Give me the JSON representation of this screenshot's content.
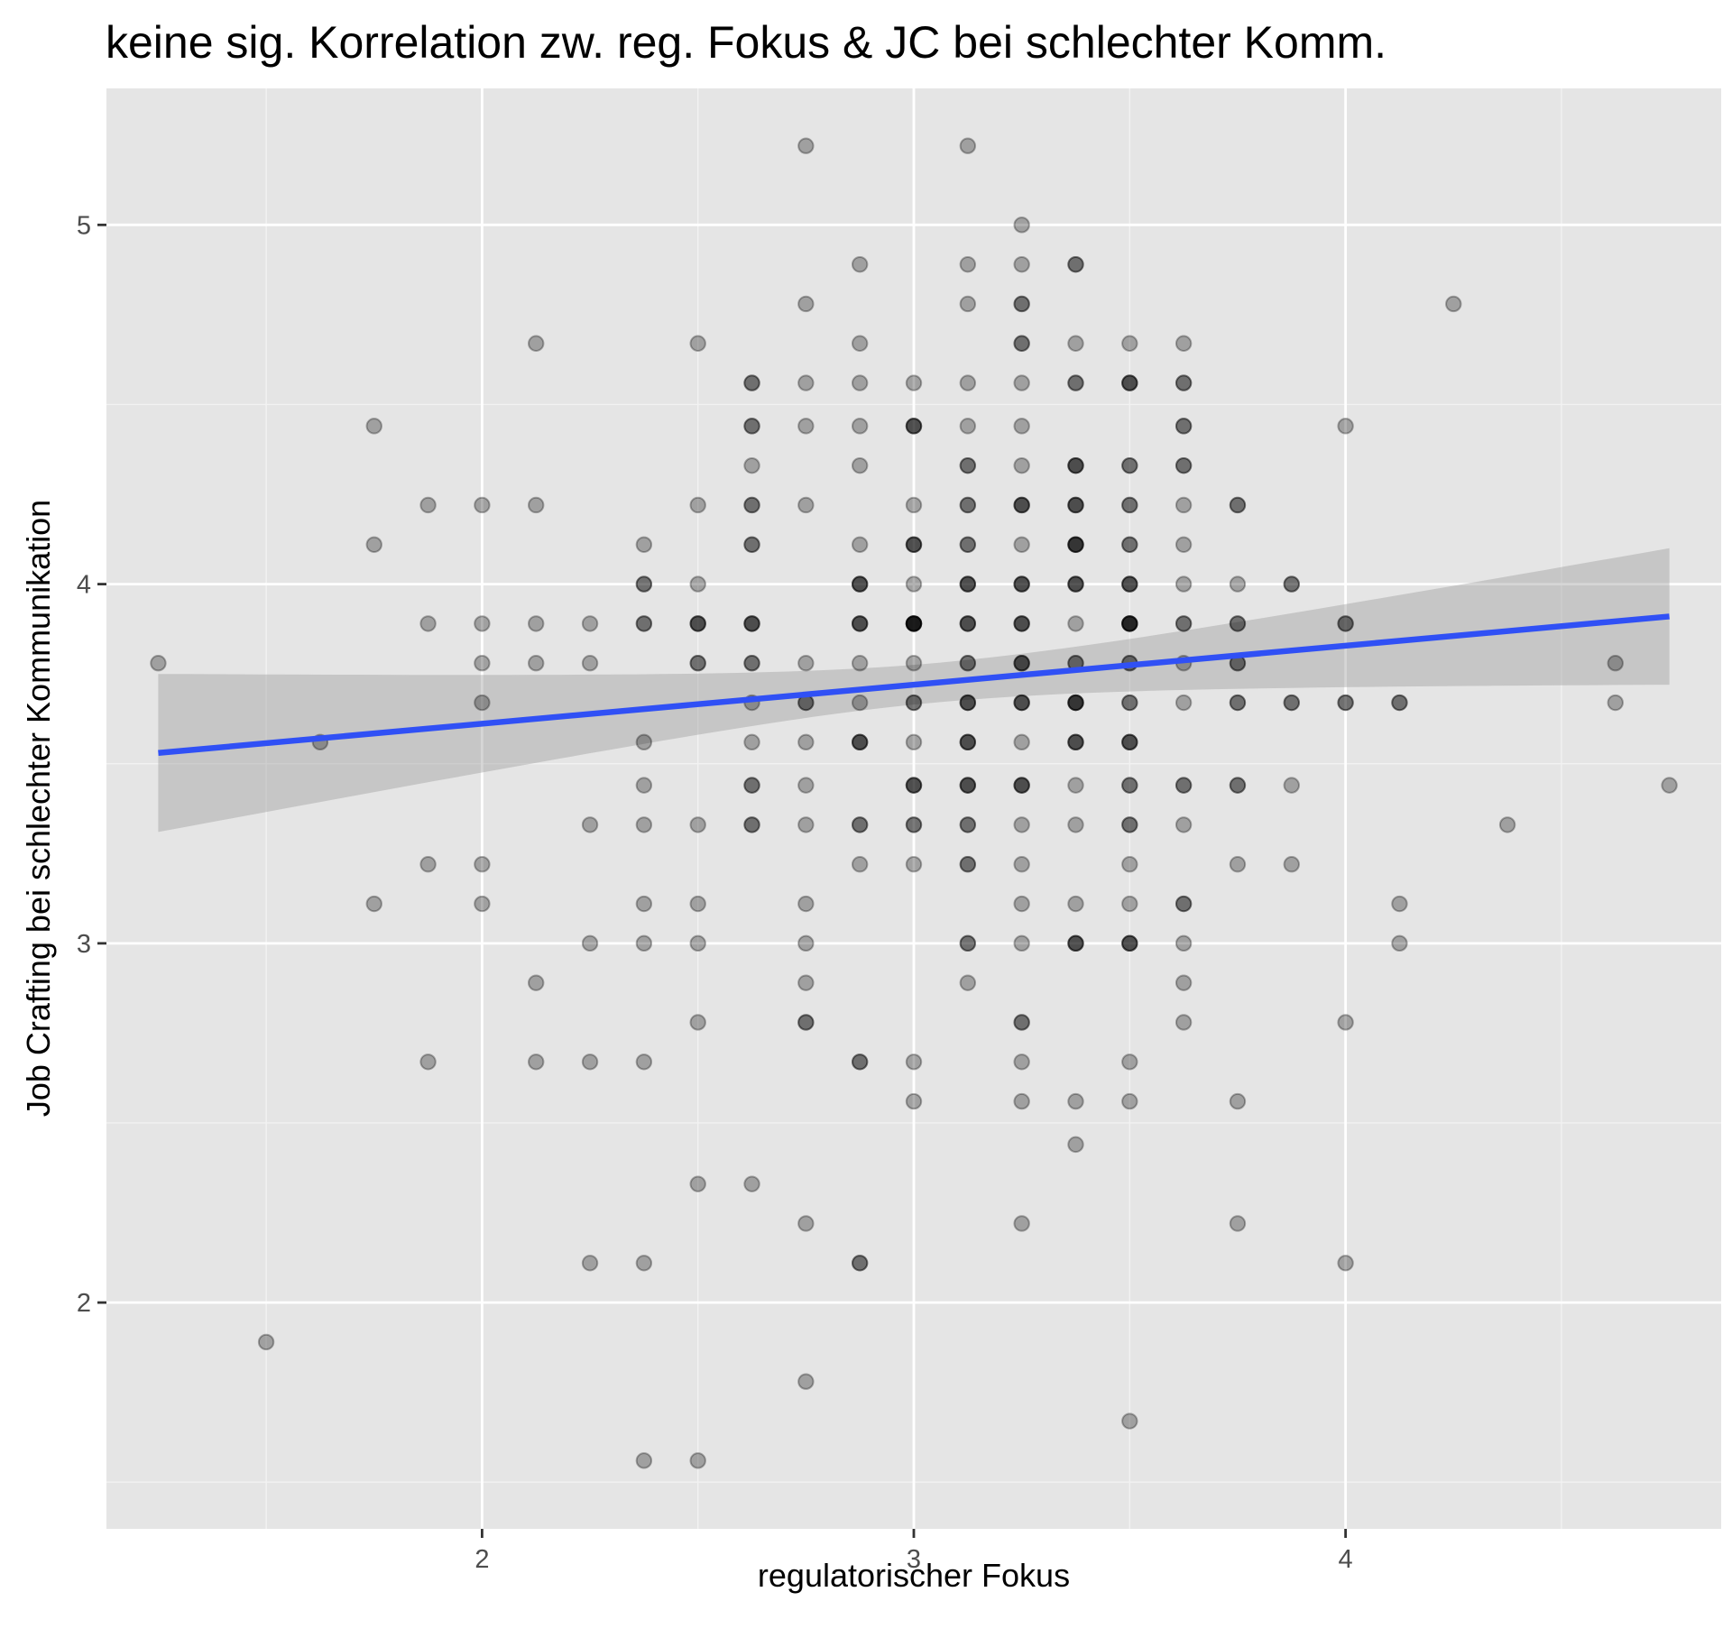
{
  "chart_data": {
    "type": "scatter",
    "title": "keine sig. Korrelation zw. reg. Fokus & JC bei schlechter Komm.",
    "xlabel": "regulatorischer Fokus",
    "ylabel": "Job Crafting bei schlechter Kommunikation",
    "xlim": [
      1.13,
      4.87
    ],
    "ylim": [
      1.37,
      5.38
    ],
    "x_ticks": [
      2,
      3,
      4
    ],
    "x_tick_labels": [
      "2",
      "3",
      "4"
    ],
    "y_ticks": [
      2,
      3,
      4,
      5
    ],
    "y_tick_labels": [
      "2",
      "3",
      "4",
      "5"
    ],
    "x_minor": [
      1.5,
      2.5,
      3.5,
      4.5
    ],
    "y_minor": [
      1.5,
      2.5,
      3.5,
      4.5
    ],
    "grid": true,
    "point_alpha": 0.3,
    "colors": {
      "panel": "#e5e5e5",
      "grid_major": "#ffffff",
      "grid_minor": "#f2f2f2",
      "points": "#000000",
      "fit_line": "#3050f5",
      "ribbon": "#999999",
      "tick": "#333333"
    },
    "fit": {
      "method": "lm",
      "x": [
        1.25,
        4.75
      ],
      "y": [
        3.53,
        3.91
      ],
      "ci_lower": [
        3.31,
        3.72
      ],
      "ci_upper": [
        3.75,
        4.1
      ],
      "ci_at_x": 3.05,
      "ci_min_lower": 3.68,
      "ci_min_upper": 3.79
    },
    "points": [
      [
        1.25,
        3.78
      ],
      [
        1.5,
        1.89
      ],
      [
        1.625,
        3.56
      ],
      [
        1.75,
        4.44
      ],
      [
        1.75,
        4.11
      ],
      [
        1.75,
        3.11
      ],
      [
        1.875,
        4.22
      ],
      [
        1.875,
        3.89
      ],
      [
        1.875,
        3.22
      ],
      [
        1.875,
        2.67
      ],
      [
        2,
        4.22
      ],
      [
        2,
        3.89
      ],
      [
        2,
        3.78
      ],
      [
        2,
        3.67
      ],
      [
        2,
        3.22
      ],
      [
        2,
        3.11
      ],
      [
        2.125,
        4.67
      ],
      [
        2.125,
        4.22
      ],
      [
        2.125,
        3.89
      ],
      [
        2.125,
        3.78
      ],
      [
        2.125,
        2.89
      ],
      [
        2.125,
        2.67
      ],
      [
        2.25,
        3.89
      ],
      [
        2.25,
        3.78
      ],
      [
        2.25,
        3.33
      ],
      [
        2.25,
        3
      ],
      [
        2.25,
        2.67
      ],
      [
        2.25,
        2.11
      ],
      [
        2.375,
        4.11
      ],
      [
        2.375,
        4
      ],
      [
        2.375,
        4
      ],
      [
        2.375,
        3.89
      ],
      [
        2.375,
        3.89
      ],
      [
        2.375,
        3.56
      ],
      [
        2.375,
        3.44
      ],
      [
        2.375,
        3.33
      ],
      [
        2.375,
        3.11
      ],
      [
        2.375,
        3
      ],
      [
        2.375,
        2.67
      ],
      [
        2.375,
        2.11
      ],
      [
        2.375,
        1.56
      ],
      [
        2.5,
        4.67
      ],
      [
        2.5,
        4.22
      ],
      [
        2.5,
        4
      ],
      [
        2.5,
        3.89
      ],
      [
        2.5,
        3.89
      ],
      [
        2.5,
        3.89
      ],
      [
        2.5,
        3.78
      ],
      [
        2.5,
        3.78
      ],
      [
        2.5,
        3.33
      ],
      [
        2.5,
        3.11
      ],
      [
        2.5,
        3
      ],
      [
        2.5,
        2.78
      ],
      [
        2.5,
        2.33
      ],
      [
        2.5,
        1.56
      ],
      [
        2.625,
        4.56
      ],
      [
        2.625,
        4.56
      ],
      [
        2.625,
        4.44
      ],
      [
        2.625,
        4.44
      ],
      [
        2.625,
        4.33
      ],
      [
        2.625,
        4.22
      ],
      [
        2.625,
        4.22
      ],
      [
        2.625,
        4.11
      ],
      [
        2.625,
        4.11
      ],
      [
        2.625,
        3.89
      ],
      [
        2.625,
        3.89
      ],
      [
        2.625,
        3.89
      ],
      [
        2.625,
        3.78
      ],
      [
        2.625,
        3.78
      ],
      [
        2.625,
        3.67
      ],
      [
        2.625,
        3.56
      ],
      [
        2.625,
        3.44
      ],
      [
        2.625,
        3.44
      ],
      [
        2.625,
        3.33
      ],
      [
        2.625,
        3.33
      ],
      [
        2.625,
        2.33
      ],
      [
        2.75,
        5.22
      ],
      [
        2.75,
        4.78
      ],
      [
        2.75,
        4.56
      ],
      [
        2.75,
        4.44
      ],
      [
        2.75,
        4.22
      ],
      [
        2.75,
        3.78
      ],
      [
        2.75,
        3.67
      ],
      [
        2.75,
        3.67
      ],
      [
        2.75,
        3.56
      ],
      [
        2.75,
        3.44
      ],
      [
        2.75,
        3.33
      ],
      [
        2.75,
        3.11
      ],
      [
        2.75,
        3
      ],
      [
        2.75,
        2.89
      ],
      [
        2.75,
        2.78
      ],
      [
        2.75,
        2.78
      ],
      [
        2.75,
        2.22
      ],
      [
        2.75,
        1.78
      ],
      [
        2.875,
        4.89
      ],
      [
        2.875,
        4.67
      ],
      [
        2.875,
        4.56
      ],
      [
        2.875,
        4.44
      ],
      [
        2.875,
        4.33
      ],
      [
        2.875,
        4.11
      ],
      [
        2.875,
        4
      ],
      [
        2.875,
        4
      ],
      [
        2.875,
        4
      ],
      [
        2.875,
        3.89
      ],
      [
        2.875,
        3.89
      ],
      [
        2.875,
        3.89
      ],
      [
        2.875,
        3.78
      ],
      [
        2.875,
        3.67
      ],
      [
        2.875,
        3.56
      ],
      [
        2.875,
        3.56
      ],
      [
        2.875,
        3.56
      ],
      [
        2.875,
        3.33
      ],
      [
        2.875,
        3.33
      ],
      [
        2.875,
        3.22
      ],
      [
        2.875,
        2.67
      ],
      [
        2.875,
        2.67
      ],
      [
        2.875,
        2.11
      ],
      [
        2.875,
        2.11
      ],
      [
        3,
        4.56
      ],
      [
        3,
        4.44
      ],
      [
        3,
        4.44
      ],
      [
        3,
        4.44
      ],
      [
        3,
        4.22
      ],
      [
        3,
        4.11
      ],
      [
        3,
        4.11
      ],
      [
        3,
        4.11
      ],
      [
        3,
        4
      ],
      [
        3,
        3.89
      ],
      [
        3,
        3.89
      ],
      [
        3,
        3.89
      ],
      [
        3,
        3.89
      ],
      [
        3,
        3.89
      ],
      [
        3,
        3.89
      ],
      [
        3,
        3.78
      ],
      [
        3,
        3.67
      ],
      [
        3,
        3.67
      ],
      [
        3,
        3.56
      ],
      [
        3,
        3.44
      ],
      [
        3,
        3.44
      ],
      [
        3,
        3.44
      ],
      [
        3,
        3.33
      ],
      [
        3,
        3.33
      ],
      [
        3,
        3.22
      ],
      [
        3,
        2.67
      ],
      [
        3,
        2.56
      ],
      [
        3.125,
        5.22
      ],
      [
        3.125,
        4.89
      ],
      [
        3.125,
        4.78
      ],
      [
        3.125,
        4.56
      ],
      [
        3.125,
        4.44
      ],
      [
        3.125,
        4.33
      ],
      [
        3.125,
        4.33
      ],
      [
        3.125,
        4.22
      ],
      [
        3.125,
        4.22
      ],
      [
        3.125,
        4.11
      ],
      [
        3.125,
        4.11
      ],
      [
        3.125,
        4
      ],
      [
        3.125,
        4
      ],
      [
        3.125,
        4
      ],
      [
        3.125,
        3.89
      ],
      [
        3.125,
        3.89
      ],
      [
        3.125,
        3.89
      ],
      [
        3.125,
        3.78
      ],
      [
        3.125,
        3.78
      ],
      [
        3.125,
        3.67
      ],
      [
        3.125,
        3.67
      ],
      [
        3.125,
        3.67
      ],
      [
        3.125,
        3.56
      ],
      [
        3.125,
        3.56
      ],
      [
        3.125,
        3.56
      ],
      [
        3.125,
        3.44
      ],
      [
        3.125,
        3.44
      ],
      [
        3.125,
        3.44
      ],
      [
        3.125,
        3.33
      ],
      [
        3.125,
        3.33
      ],
      [
        3.125,
        3.22
      ],
      [
        3.125,
        3.22
      ],
      [
        3.125,
        3
      ],
      [
        3.125,
        3
      ],
      [
        3.125,
        2.89
      ],
      [
        3.25,
        5
      ],
      [
        3.25,
        4.89
      ],
      [
        3.25,
        4.78
      ],
      [
        3.25,
        4.78
      ],
      [
        3.25,
        4.67
      ],
      [
        3.25,
        4.67
      ],
      [
        3.25,
        4.56
      ],
      [
        3.25,
        4.44
      ],
      [
        3.25,
        4.33
      ],
      [
        3.25,
        4.22
      ],
      [
        3.25,
        4.22
      ],
      [
        3.25,
        4.22
      ],
      [
        3.25,
        4.11
      ],
      [
        3.25,
        4
      ],
      [
        3.25,
        4
      ],
      [
        3.25,
        4
      ],
      [
        3.25,
        3.89
      ],
      [
        3.25,
        3.89
      ],
      [
        3.25,
        3.89
      ],
      [
        3.25,
        3.78
      ],
      [
        3.25,
        3.78
      ],
      [
        3.25,
        3.78
      ],
      [
        3.25,
        3.67
      ],
      [
        3.25,
        3.67
      ],
      [
        3.25,
        3.67
      ],
      [
        3.25,
        3.56
      ],
      [
        3.25,
        3.44
      ],
      [
        3.25,
        3.44
      ],
      [
        3.25,
        3.44
      ],
      [
        3.25,
        3.33
      ],
      [
        3.25,
        3.22
      ],
      [
        3.25,
        3.11
      ],
      [
        3.25,
        3
      ],
      [
        3.25,
        2.78
      ],
      [
        3.25,
        2.78
      ],
      [
        3.25,
        2.67
      ],
      [
        3.25,
        2.56
      ],
      [
        3.25,
        2.22
      ],
      [
        3.375,
        4.89
      ],
      [
        3.375,
        4.89
      ],
      [
        3.375,
        4.67
      ],
      [
        3.375,
        4.56
      ],
      [
        3.375,
        4.56
      ],
      [
        3.375,
        4.33
      ],
      [
        3.375,
        4.33
      ],
      [
        3.375,
        4.33
      ],
      [
        3.375,
        4.22
      ],
      [
        3.375,
        4.22
      ],
      [
        3.375,
        4.22
      ],
      [
        3.375,
        4.11
      ],
      [
        3.375,
        4.11
      ],
      [
        3.375,
        4.11
      ],
      [
        3.375,
        4.11
      ],
      [
        3.375,
        4
      ],
      [
        3.375,
        4
      ],
      [
        3.375,
        4
      ],
      [
        3.375,
        3.89
      ],
      [
        3.375,
        3.78
      ],
      [
        3.375,
        3.78
      ],
      [
        3.375,
        3.67
      ],
      [
        3.375,
        3.67
      ],
      [
        3.375,
        3.67
      ],
      [
        3.375,
        3.67
      ],
      [
        3.375,
        3.56
      ],
      [
        3.375,
        3.56
      ],
      [
        3.375,
        3.56
      ],
      [
        3.375,
        3.44
      ],
      [
        3.375,
        3.33
      ],
      [
        3.375,
        3.11
      ],
      [
        3.375,
        3
      ],
      [
        3.375,
        3
      ],
      [
        3.375,
        3
      ],
      [
        3.375,
        2.56
      ],
      [
        3.375,
        2.44
      ],
      [
        3.5,
        4.67
      ],
      [
        3.5,
        4.56
      ],
      [
        3.5,
        4.56
      ],
      [
        3.5,
        4.56
      ],
      [
        3.5,
        4.33
      ],
      [
        3.5,
        4.33
      ],
      [
        3.5,
        4.22
      ],
      [
        3.5,
        4.22
      ],
      [
        3.5,
        4.11
      ],
      [
        3.5,
        4.11
      ],
      [
        3.5,
        4
      ],
      [
        3.5,
        4
      ],
      [
        3.5,
        4
      ],
      [
        3.5,
        3.89
      ],
      [
        3.5,
        3.89
      ],
      [
        3.5,
        3.89
      ],
      [
        3.5,
        3.89
      ],
      [
        3.5,
        3.89
      ],
      [
        3.5,
        3.78
      ],
      [
        3.5,
        3.78
      ],
      [
        3.5,
        3.67
      ],
      [
        3.5,
        3.67
      ],
      [
        3.5,
        3.56
      ],
      [
        3.5,
        3.56
      ],
      [
        3.5,
        3.56
      ],
      [
        3.5,
        3.44
      ],
      [
        3.5,
        3.44
      ],
      [
        3.5,
        3.33
      ],
      [
        3.5,
        3.33
      ],
      [
        3.5,
        3.22
      ],
      [
        3.5,
        3.11
      ],
      [
        3.5,
        3
      ],
      [
        3.5,
        3
      ],
      [
        3.5,
        3
      ],
      [
        3.5,
        2.67
      ],
      [
        3.5,
        2.56
      ],
      [
        3.5,
        1.67
      ],
      [
        3.625,
        4.67
      ],
      [
        3.625,
        4.56
      ],
      [
        3.625,
        4.56
      ],
      [
        3.625,
        4.44
      ],
      [
        3.625,
        4.44
      ],
      [
        3.625,
        4.33
      ],
      [
        3.625,
        4.33
      ],
      [
        3.625,
        4.22
      ],
      [
        3.625,
        4.11
      ],
      [
        3.625,
        4
      ],
      [
        3.625,
        3.89
      ],
      [
        3.625,
        3.89
      ],
      [
        3.625,
        3.78
      ],
      [
        3.625,
        3.67
      ],
      [
        3.625,
        3.44
      ],
      [
        3.625,
        3.44
      ],
      [
        3.625,
        3.33
      ],
      [
        3.625,
        3.11
      ],
      [
        3.625,
        3.11
      ],
      [
        3.625,
        3
      ],
      [
        3.625,
        2.89
      ],
      [
        3.625,
        2.78
      ],
      [
        3.75,
        4.22
      ],
      [
        3.75,
        4.22
      ],
      [
        3.75,
        4
      ],
      [
        3.75,
        3.89
      ],
      [
        3.75,
        3.89
      ],
      [
        3.75,
        3.78
      ],
      [
        3.75,
        3.78
      ],
      [
        3.75,
        3.67
      ],
      [
        3.75,
        3.67
      ],
      [
        3.75,
        3.44
      ],
      [
        3.75,
        3.44
      ],
      [
        3.75,
        3.22
      ],
      [
        3.75,
        2.56
      ],
      [
        3.75,
        2.22
      ],
      [
        3.875,
        4
      ],
      [
        3.875,
        4
      ],
      [
        3.875,
        3.67
      ],
      [
        3.875,
        3.67
      ],
      [
        3.875,
        3.44
      ],
      [
        3.875,
        3.22
      ],
      [
        4,
        4.44
      ],
      [
        4,
        3.89
      ],
      [
        4,
        3.89
      ],
      [
        4,
        3.67
      ],
      [
        4,
        3.67
      ],
      [
        4,
        2.78
      ],
      [
        4,
        2.11
      ],
      [
        4.125,
        3.67
      ],
      [
        4.125,
        3.67
      ],
      [
        4.125,
        3.11
      ],
      [
        4.125,
        3
      ],
      [
        4.25,
        4.78
      ],
      [
        4.375,
        3.33
      ],
      [
        4.625,
        3.78
      ],
      [
        4.625,
        3.67
      ],
      [
        4.75,
        3.44
      ]
    ]
  }
}
